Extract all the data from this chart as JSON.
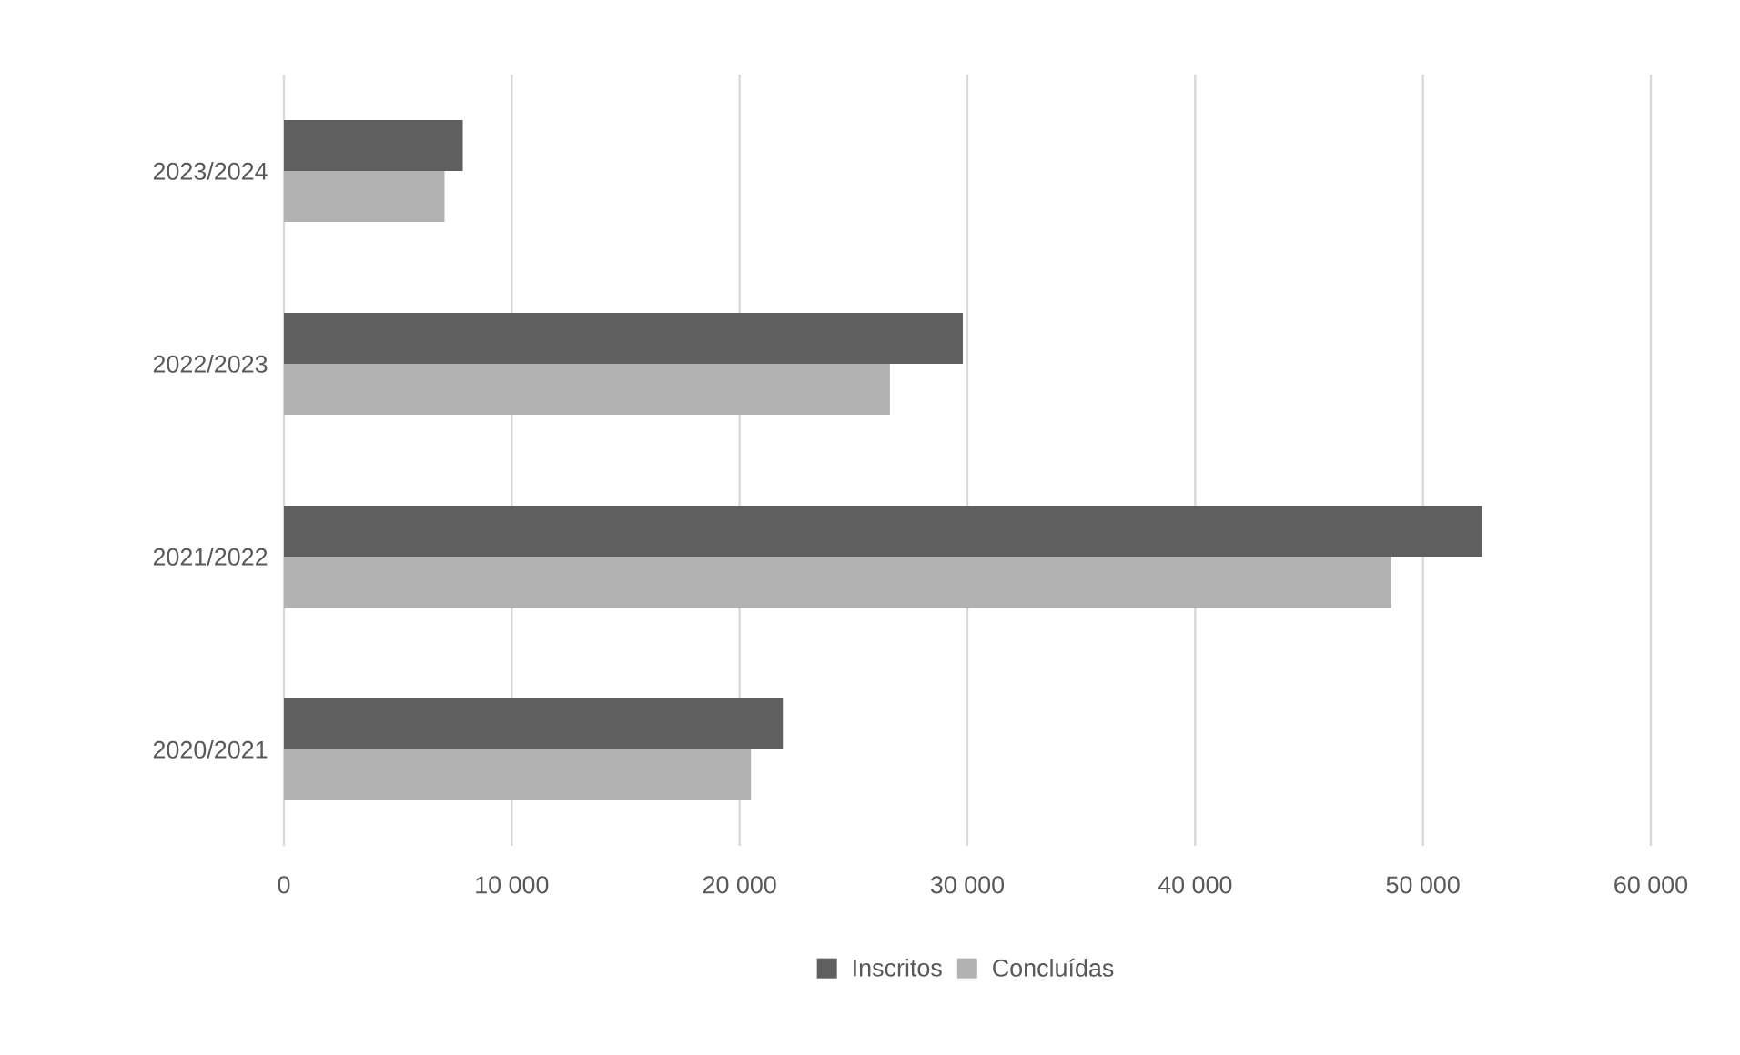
{
  "chart_data": {
    "type": "bar",
    "orientation": "horizontal",
    "categories": [
      "2023/2024",
      "2022/2023",
      "2021/2022",
      "2020/2021"
    ],
    "series": [
      {
        "name": "Inscritos",
        "color": "#5f5f5f",
        "values": [
          7850,
          29800,
          52600,
          21900
        ]
      },
      {
        "name": "Concluídas",
        "color": "#b2b2b2",
        "values": [
          7050,
          26600,
          48600,
          20500
        ]
      }
    ],
    "xlim": [
      0,
      60000
    ],
    "xticks": [
      0,
      {
        "value": 10000,
        "label": "10 000"
      },
      {
        "value": 20000,
        "label": "20 000"
      },
      {
        "value": 30000,
        "label": "30 000"
      },
      {
        "value": 40000,
        "label": "40 000"
      },
      {
        "value": 50000,
        "label": "50 000"
      },
      {
        "value": 60000,
        "label": "60 000"
      }
    ],
    "grid": "x",
    "legend": "bottom"
  }
}
